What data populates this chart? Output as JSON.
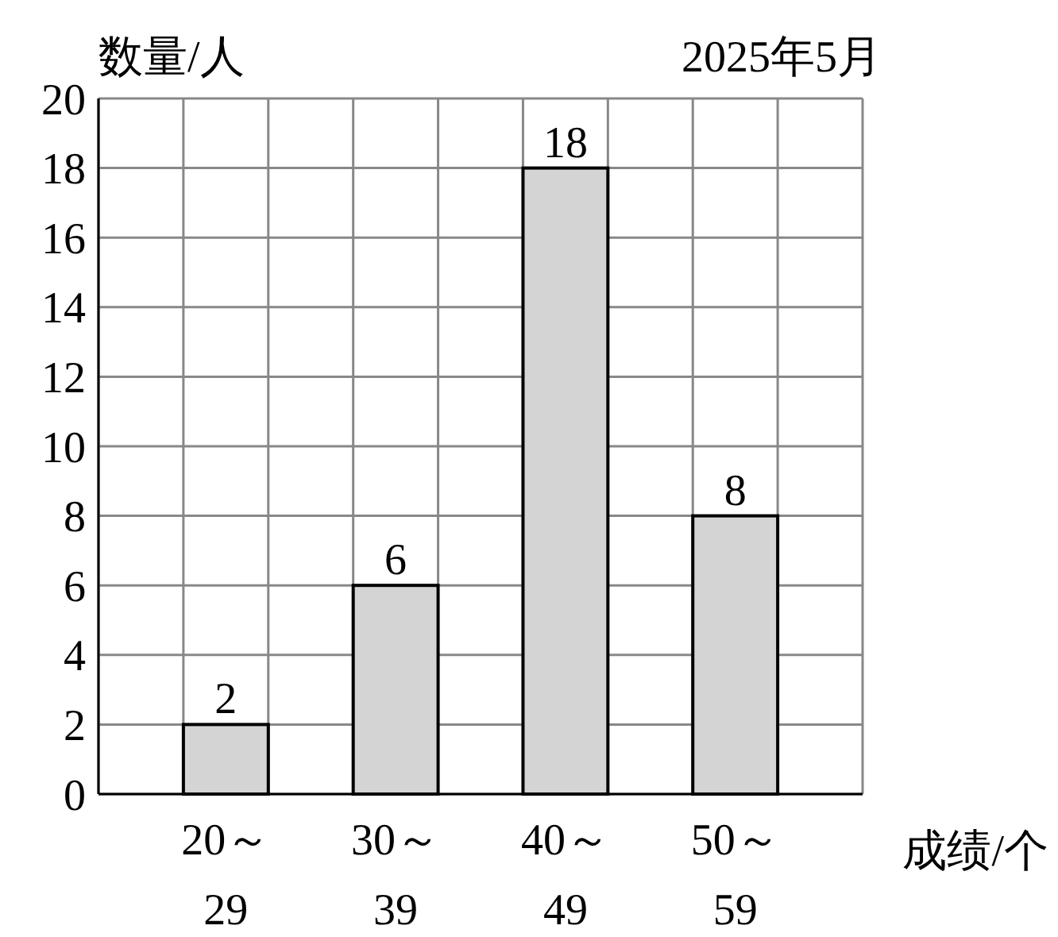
{
  "chart_data": {
    "type": "bar",
    "title": "2025年5月",
    "ylabel": "数量/人",
    "xlabel": "成绩/个",
    "categories": [
      "20～29",
      "30～39",
      "40～49",
      "50～59"
    ],
    "values": [
      2,
      6,
      18,
      8
    ],
    "color": "#d4d4d4",
    "ylim": [
      0,
      20
    ],
    "yticks": [
      0,
      2,
      4,
      6,
      8,
      10,
      12,
      14,
      16,
      18,
      20
    ],
    "grid": true,
    "data_labels": true
  }
}
